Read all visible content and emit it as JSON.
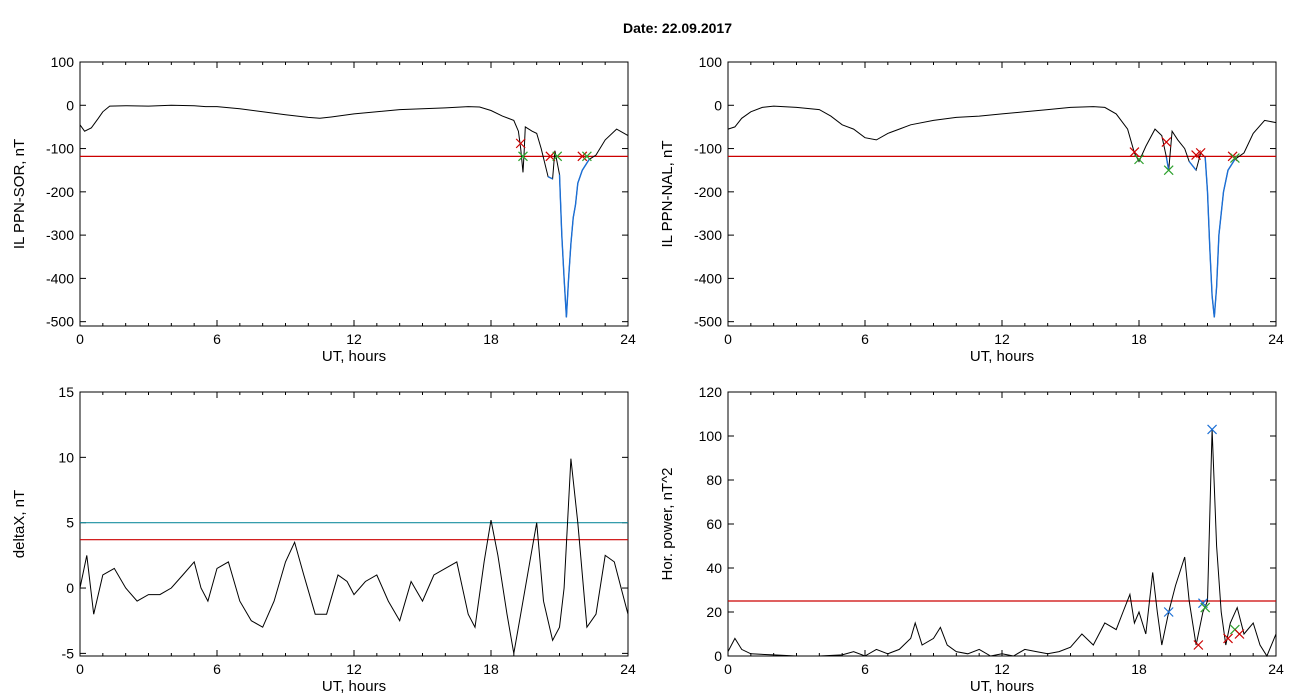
{
  "figure": {
    "title": "Date:  22.09.2017"
  },
  "chart_data": [
    {
      "type": "line",
      "xlabel": "UT, hours",
      "ylabel": "IL PPN-SOR, nT",
      "xlim": [
        0,
        24
      ],
      "ylim": [
        -510,
        100
      ],
      "xticks": [
        "0",
        "6",
        "12",
        "18",
        "24"
      ],
      "yticks": [
        "100",
        "0",
        "-100",
        "-200",
        "-300",
        "-400",
        "-500"
      ],
      "threshold": -118,
      "colors": {
        "line": "#000000",
        "event": "#1b6fd6",
        "threshold": "#cc0000",
        "marker_red": "#cc0000",
        "marker_green": "#2ca02c"
      },
      "series": [
        {
          "values": [
            [
              0,
              -45
            ],
            [
              0.2,
              -60
            ],
            [
              0.5,
              -52
            ],
            [
              0.8,
              -30
            ],
            [
              1.0,
              -15
            ],
            [
              1.3,
              -2
            ],
            [
              2,
              -1
            ],
            [
              3,
              -2
            ],
            [
              4,
              0
            ],
            [
              5,
              -1
            ],
            [
              5.5,
              -3
            ],
            [
              6,
              -3
            ],
            [
              7,
              -8
            ],
            [
              8,
              -15
            ],
            [
              9,
              -22
            ],
            [
              10,
              -28
            ],
            [
              10.5,
              -30
            ],
            [
              11,
              -27
            ],
            [
              12,
              -20
            ],
            [
              13,
              -15
            ],
            [
              14,
              -10
            ],
            [
              15,
              -8
            ],
            [
              16,
              -6
            ],
            [
              17,
              -3
            ],
            [
              17.5,
              -4
            ],
            [
              18,
              -12
            ],
            [
              18.5,
              -25
            ],
            [
              19.0,
              -35
            ],
            [
              19.2,
              -60
            ],
            [
              19.3,
              -100
            ],
            [
              19.4,
              -155
            ],
            [
              19.45,
              -110
            ],
            [
              19.5,
              -50
            ],
            [
              19.8,
              -60
            ],
            [
              20.0,
              -65
            ],
            [
              20.2,
              -100
            ],
            [
              20.5,
              -165
            ],
            [
              20.7,
              -170
            ],
            [
              20.8,
              -105
            ],
            [
              21.0,
              -160
            ],
            [
              21.1,
              -300
            ],
            [
              21.2,
              -400
            ],
            [
              21.3,
              -490
            ],
            [
              21.4,
              -400
            ],
            [
              21.5,
              -320
            ],
            [
              21.6,
              -260
            ],
            [
              21.7,
              -230
            ],
            [
              21.8,
              -180
            ],
            [
              22.0,
              -150
            ],
            [
              22.3,
              -125
            ],
            [
              22.6,
              -115
            ],
            [
              23,
              -80
            ],
            [
              23.5,
              -55
            ],
            [
              24,
              -70
            ]
          ]
        }
      ],
      "markers": [
        {
          "x": 19.3,
          "y": -88,
          "color": "red"
        },
        {
          "x": 19.4,
          "y": -118,
          "color": "green"
        },
        {
          "x": 20.6,
          "y": -118,
          "color": "red"
        },
        {
          "x": 20.9,
          "y": -118,
          "color": "green"
        },
        {
          "x": 22.0,
          "y": -118,
          "color": "red"
        },
        {
          "x": 22.2,
          "y": -118,
          "color": "green"
        }
      ]
    },
    {
      "type": "line",
      "xlabel": "UT, hours",
      "ylabel": "IL PPN-NAL, nT",
      "xlim": [
        0,
        24
      ],
      "ylim": [
        -510,
        100
      ],
      "xticks": [
        "0",
        "6",
        "12",
        "18",
        "24"
      ],
      "yticks": [
        "100",
        "0",
        "-100",
        "-200",
        "-300",
        "-400",
        "-500"
      ],
      "threshold": -118,
      "colors": {
        "line": "#000000",
        "event": "#1b6fd6",
        "threshold": "#cc0000",
        "marker_red": "#cc0000",
        "marker_green": "#2ca02c"
      },
      "series": [
        {
          "values": [
            [
              0,
              -55
            ],
            [
              0.3,
              -50
            ],
            [
              0.6,
              -30
            ],
            [
              1.0,
              -15
            ],
            [
              1.5,
              -5
            ],
            [
              2,
              -2
            ],
            [
              3,
              -5
            ],
            [
              4,
              -10
            ],
            [
              4.5,
              -25
            ],
            [
              5,
              -45
            ],
            [
              5.5,
              -55
            ],
            [
              6,
              -75
            ],
            [
              6.5,
              -80
            ],
            [
              7,
              -65
            ],
            [
              7.5,
              -55
            ],
            [
              8,
              -45
            ],
            [
              9,
              -35
            ],
            [
              10,
              -28
            ],
            [
              11,
              -25
            ],
            [
              12,
              -20
            ],
            [
              13,
              -15
            ],
            [
              14,
              -10
            ],
            [
              15,
              -5
            ],
            [
              16,
              -3
            ],
            [
              16.5,
              -5
            ],
            [
              17,
              -20
            ],
            [
              17.5,
              -55
            ],
            [
              17.8,
              -110
            ],
            [
              18.0,
              -130
            ],
            [
              18.3,
              -95
            ],
            [
              18.7,
              -55
            ],
            [
              19.0,
              -70
            ],
            [
              19.2,
              -120
            ],
            [
              19.3,
              -150
            ],
            [
              19.45,
              -60
            ],
            [
              19.7,
              -80
            ],
            [
              20.0,
              -100
            ],
            [
              20.2,
              -130
            ],
            [
              20.5,
              -150
            ],
            [
              20.7,
              -110
            ],
            [
              20.9,
              -120
            ],
            [
              21.0,
              -200
            ],
            [
              21.1,
              -330
            ],
            [
              21.2,
              -440
            ],
            [
              21.3,
              -490
            ],
            [
              21.4,
              -420
            ],
            [
              21.5,
              -300
            ],
            [
              21.6,
              -250
            ],
            [
              21.7,
              -200
            ],
            [
              21.9,
              -150
            ],
            [
              22.2,
              -125
            ],
            [
              22.6,
              -110
            ],
            [
              23.0,
              -65
            ],
            [
              23.5,
              -35
            ],
            [
              24,
              -40
            ]
          ]
        }
      ],
      "markers": [
        {
          "x": 17.8,
          "y": -108,
          "color": "red"
        },
        {
          "x": 18.0,
          "y": -125,
          "color": "green"
        },
        {
          "x": 19.2,
          "y": -85,
          "color": "red"
        },
        {
          "x": 19.3,
          "y": -150,
          "color": "green"
        },
        {
          "x": 20.5,
          "y": -115,
          "color": "red"
        },
        {
          "x": 20.7,
          "y": -110,
          "color": "red"
        },
        {
          "x": 22.1,
          "y": -118,
          "color": "red"
        },
        {
          "x": 22.2,
          "y": -122,
          "color": "green"
        }
      ]
    },
    {
      "type": "line",
      "xlabel": "UT, hours",
      "ylabel": "deltaX, nT",
      "xlim": [
        0,
        24
      ],
      "ylim": [
        -5.2,
        15
      ],
      "xticks": [
        "0",
        "6",
        "12",
        "18",
        "24"
      ],
      "yticks": [
        "15",
        "10",
        "5",
        "0",
        "-5"
      ],
      "thresholds": [
        {
          "value": 5.0,
          "color": "#1a8fa0"
        },
        {
          "value": 3.7,
          "color": "#cc0000"
        }
      ],
      "colors": {
        "line": "#000000"
      },
      "series": [
        {
          "values": [
            [
              0,
              0
            ],
            [
              0.3,
              2.5
            ],
            [
              0.6,
              -2
            ],
            [
              1.0,
              1.0
            ],
            [
              1.5,
              1.5
            ],
            [
              2,
              0
            ],
            [
              2.5,
              -1
            ],
            [
              3,
              -0.5
            ],
            [
              3.5,
              -0.5
            ],
            [
              4,
              0
            ],
            [
              4.5,
              1.0
            ],
            [
              5,
              2.0
            ],
            [
              5.3,
              0
            ],
            [
              5.6,
              -1
            ],
            [
              6,
              1.5
            ],
            [
              6.5,
              2.0
            ],
            [
              7,
              -1
            ],
            [
              7.5,
              -2.5
            ],
            [
              8,
              -3
            ],
            [
              8.5,
              -1
            ],
            [
              9,
              2.0
            ],
            [
              9.4,
              3.5
            ],
            [
              9.8,
              1.0
            ],
            [
              10.3,
              -2
            ],
            [
              10.8,
              -2
            ],
            [
              11.3,
              1.0
            ],
            [
              11.7,
              0.5
            ],
            [
              12,
              -0.5
            ],
            [
              12.5,
              0.5
            ],
            [
              13,
              1.0
            ],
            [
              13.5,
              -1
            ],
            [
              14,
              -2.5
            ],
            [
              14.5,
              0.5
            ],
            [
              15,
              -1
            ],
            [
              15.5,
              1.0
            ],
            [
              16,
              1.5
            ],
            [
              16.5,
              2.0
            ],
            [
              17,
              -2
            ],
            [
              17.3,
              -3
            ],
            [
              17.7,
              2.0
            ],
            [
              18,
              5.2
            ],
            [
              18.3,
              2.5
            ],
            [
              18.7,
              -2
            ],
            [
              19,
              -5
            ],
            [
              19.3,
              -2
            ],
            [
              19.7,
              2.0
            ],
            [
              20,
              5.0
            ],
            [
              20.3,
              -1
            ],
            [
              20.7,
              -4
            ],
            [
              21,
              -3
            ],
            [
              21.2,
              0
            ],
            [
              21.5,
              9.9
            ],
            [
              21.8,
              5.0
            ],
            [
              22.2,
              -3
            ],
            [
              22.6,
              -2
            ],
            [
              23.0,
              2.5
            ],
            [
              23.4,
              2.0
            ],
            [
              23.7,
              0
            ],
            [
              24,
              -2
            ]
          ]
        }
      ]
    },
    {
      "type": "line",
      "xlabel": "UT, hours",
      "ylabel": "Hor. power, nT^2",
      "xlim": [
        0,
        24
      ],
      "ylim": [
        0,
        120
      ],
      "xticks": [
        "0",
        "6",
        "12",
        "18",
        "24"
      ],
      "yticks": [
        "120",
        "100",
        "80",
        "60",
        "40",
        "20",
        "0"
      ],
      "threshold": 25,
      "colors": {
        "line": "#000000",
        "threshold": "#cc0000",
        "marker_red": "#cc0000",
        "marker_green": "#2ca02c",
        "marker_blue": "#1b6fd6"
      },
      "series": [
        {
          "values": [
            [
              0,
              2
            ],
            [
              0.3,
              8
            ],
            [
              0.6,
              3
            ],
            [
              1,
              1
            ],
            [
              2,
              0.5
            ],
            [
              3,
              0
            ],
            [
              4,
              0
            ],
            [
              5,
              0.5
            ],
            [
              5.5,
              2
            ],
            [
              6,
              0
            ],
            [
              6.5,
              3
            ],
            [
              7,
              1
            ],
            [
              7.5,
              3
            ],
            [
              8,
              8
            ],
            [
              8.2,
              15
            ],
            [
              8.5,
              5
            ],
            [
              9,
              8
            ],
            [
              9.3,
              13
            ],
            [
              9.6,
              5
            ],
            [
              10,
              2
            ],
            [
              10.5,
              1
            ],
            [
              11,
              3
            ],
            [
              11.5,
              0
            ],
            [
              12,
              1
            ],
            [
              12.5,
              0
            ],
            [
              13,
              3
            ],
            [
              13.5,
              2
            ],
            [
              14,
              1
            ],
            [
              14.5,
              2
            ],
            [
              15,
              4
            ],
            [
              15.5,
              10
            ],
            [
              16,
              5
            ],
            [
              16.5,
              15
            ],
            [
              17,
              12
            ],
            [
              17.3,
              20
            ],
            [
              17.6,
              28
            ],
            [
              17.8,
              15
            ],
            [
              18,
              20
            ],
            [
              18.3,
              10
            ],
            [
              18.6,
              38
            ],
            [
              18.8,
              20
            ],
            [
              19,
              5
            ],
            [
              19.3,
              20
            ],
            [
              19.6,
              32
            ],
            [
              20,
              45
            ],
            [
              20.2,
              25
            ],
            [
              20.5,
              5
            ],
            [
              20.8,
              20
            ],
            [
              21.0,
              25
            ],
            [
              21.2,
              103
            ],
            [
              21.4,
              50
            ],
            [
              21.6,
              20
            ],
            [
              21.8,
              5
            ],
            [
              22,
              15
            ],
            [
              22.3,
              22
            ],
            [
              22.6,
              10
            ],
            [
              23,
              15
            ],
            [
              23.3,
              5
            ],
            [
              23.6,
              0
            ],
            [
              24,
              10
            ]
          ]
        }
      ],
      "markers": [
        {
          "x": 19.3,
          "y": 20,
          "color": "blue"
        },
        {
          "x": 20.6,
          "y": 5,
          "color": "red"
        },
        {
          "x": 20.8,
          "y": 24,
          "color": "blue"
        },
        {
          "x": 20.9,
          "y": 22,
          "color": "green"
        },
        {
          "x": 21.2,
          "y": 103,
          "color": "blue"
        },
        {
          "x": 21.9,
          "y": 8,
          "color": "red"
        },
        {
          "x": 22.2,
          "y": 12,
          "color": "green"
        },
        {
          "x": 22.4,
          "y": 10,
          "color": "red"
        }
      ]
    }
  ]
}
